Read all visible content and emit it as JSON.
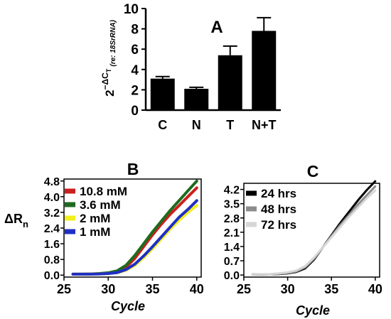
{
  "chart_data": [
    {
      "type": "bar",
      "panel_label": "A",
      "ylabel": {
        "base": "2",
        "exponent": "−ΔC",
        "exp_sub": "T",
        "note": "(re: 18SrRNA)"
      },
      "categories": [
        "C",
        "N",
        "T",
        "N+T"
      ],
      "values": [
        3.1,
        2.1,
        5.4,
        7.8
      ],
      "errors": [
        0.2,
        0.15,
        0.9,
        1.3
      ],
      "ylim": [
        0,
        10
      ],
      "yticks": [
        "0",
        "2",
        "4",
        "6",
        "8",
        "10"
      ],
      "bar_color": "#000000"
    },
    {
      "type": "line",
      "panel_label": "B",
      "ylabel": {
        "main": "ΔR",
        "sub": "n"
      },
      "xlabel": "Cycle",
      "xlim": [
        25,
        40.5
      ],
      "ylim": [
        -0.1,
        4.9
      ],
      "xticks": [
        "25",
        "30",
        "35",
        "40"
      ],
      "yticks": [
        "0.0",
        "0.8",
        "1.6",
        "2.4",
        "3.2",
        "4.0",
        "4.8"
      ],
      "legend_position": "top-left",
      "x": [
        26,
        27,
        28,
        29,
        30,
        31,
        32,
        33,
        34,
        35,
        36,
        37,
        38,
        39,
        40
      ],
      "series": [
        {
          "name": "10.8 mM",
          "color": "#cc1f1f",
          "values": [
            0.05,
            0.05,
            0.06,
            0.07,
            0.1,
            0.18,
            0.4,
            0.85,
            1.45,
            2.05,
            2.6,
            3.1,
            3.55,
            4.0,
            4.45
          ]
        },
        {
          "name": "3.6 mM",
          "color": "#1e6b1e",
          "values": [
            0.05,
            0.05,
            0.06,
            0.08,
            0.12,
            0.22,
            0.5,
            1.0,
            1.6,
            2.2,
            2.75,
            3.3,
            3.8,
            4.3,
            4.8
          ]
        },
        {
          "name": "2 mM",
          "color": "#f2ef1a",
          "values": [
            0.05,
            0.05,
            0.05,
            0.06,
            0.08,
            0.12,
            0.25,
            0.5,
            0.9,
            1.35,
            1.85,
            2.35,
            2.8,
            3.2,
            3.55
          ]
        },
        {
          "name": "1 mM",
          "color": "#1f2fc4",
          "values": [
            0.05,
            0.05,
            0.05,
            0.06,
            0.08,
            0.13,
            0.28,
            0.56,
            0.98,
            1.45,
            1.95,
            2.45,
            2.95,
            3.35,
            3.8
          ]
        }
      ]
    },
    {
      "type": "line",
      "panel_label": "C",
      "xlabel": "Cycle",
      "xlim": [
        25,
        40.5
      ],
      "ylim": [
        -0.1,
        4.5
      ],
      "xticks": [
        "25",
        "30",
        "35",
        "40"
      ],
      "yticks": [
        "0.0",
        "0.7",
        "1.4",
        "2.1",
        "2.8",
        "3.5",
        "4.2"
      ],
      "legend_position": "top-left",
      "x": [
        26,
        27,
        28,
        29,
        30,
        31,
        32,
        33,
        34,
        35,
        36,
        37,
        38,
        39,
        40
      ],
      "series": [
        {
          "name": "24 hrs",
          "color": "#000000",
          "values": [
            0.03,
            0.03,
            0.04,
            0.05,
            0.08,
            0.15,
            0.33,
            0.75,
            1.35,
            1.95,
            2.55,
            3.1,
            3.65,
            4.15,
            4.6
          ]
        },
        {
          "name": "48 hrs",
          "color": "#8c8c8c",
          "values": [
            0.03,
            0.03,
            0.04,
            0.06,
            0.1,
            0.18,
            0.38,
            0.8,
            1.35,
            1.9,
            2.45,
            2.95,
            3.45,
            3.9,
            4.35
          ]
        },
        {
          "name": "72 hrs",
          "color": "#d6d6d6",
          "values": [
            0.03,
            0.04,
            0.05,
            0.08,
            0.13,
            0.22,
            0.44,
            0.85,
            1.35,
            1.85,
            2.35,
            2.85,
            3.3,
            3.75,
            4.15
          ]
        }
      ]
    }
  ]
}
